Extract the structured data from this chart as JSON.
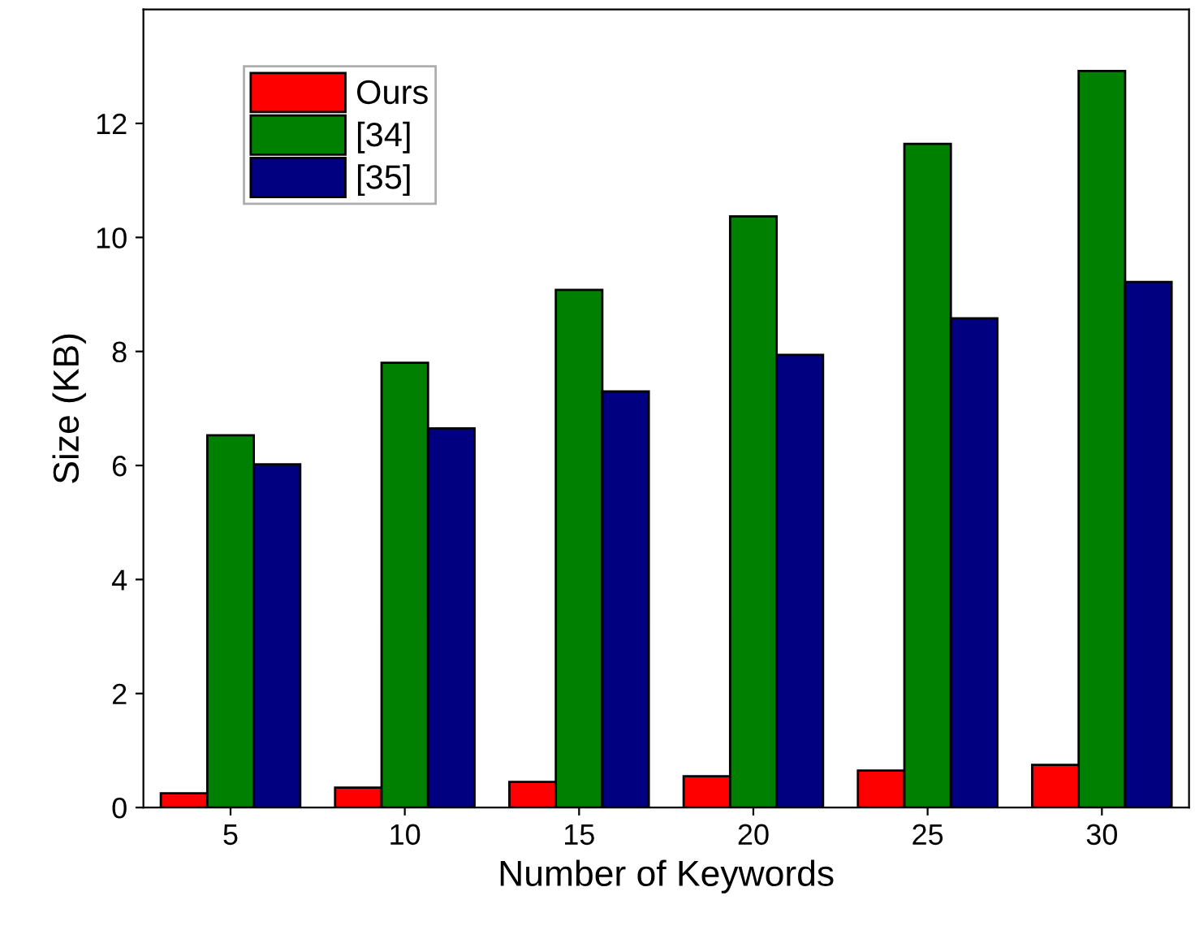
{
  "chart_data": {
    "type": "bar",
    "xlabel": "Number of Keywords",
    "ylabel": "Size (KB)",
    "categories": [
      "5",
      "10",
      "15",
      "20",
      "25",
      "30"
    ],
    "series": [
      {
        "name": "Ours",
        "color": "#ff0000",
        "values": [
          0.25,
          0.35,
          0.45,
          0.55,
          0.65,
          0.75
        ]
      },
      {
        "name": "[34]",
        "color": "#008000",
        "values": [
          6.53,
          7.8,
          9.08,
          10.37,
          11.64,
          12.92
        ]
      },
      {
        "name": "[35]",
        "color": "#000080",
        "values": [
          6.02,
          6.65,
          7.3,
          7.94,
          8.58,
          9.22
        ]
      }
    ],
    "ylim": [
      0,
      14
    ],
    "yticks": [
      0,
      2,
      4,
      6,
      8,
      10,
      12
    ],
    "grid": false,
    "legend": "top left"
  }
}
